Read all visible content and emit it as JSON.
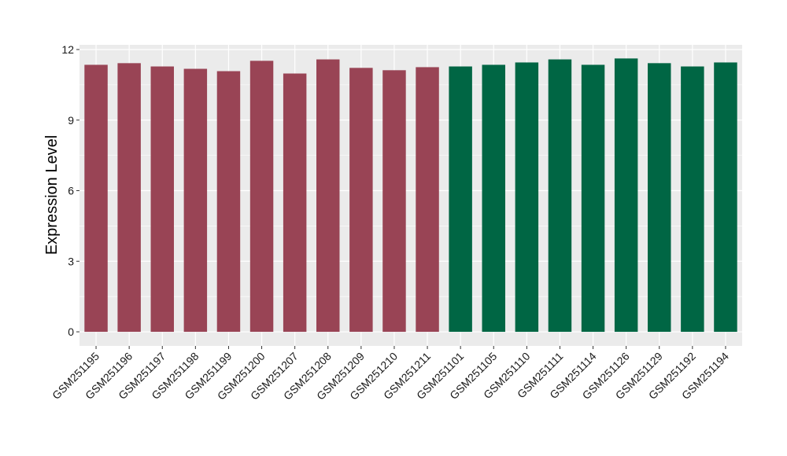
{
  "chart_data": {
    "type": "bar",
    "title": "",
    "xlabel": "",
    "ylabel": "Expression Level",
    "ylim": [
      -0.6,
      12.2
    ],
    "yticks": [
      0,
      3,
      6,
      9,
      12
    ],
    "grid": true,
    "legend": "none",
    "colors": {
      "group1": "#994455",
      "group2": "#006644",
      "panel": "#ebebeb",
      "grid": "#ffffff"
    },
    "categories": [
      "GSM251195",
      "GSM251196",
      "GSM251197",
      "GSM251198",
      "GSM251199",
      "GSM251200",
      "GSM251207",
      "GSM251208",
      "GSM251209",
      "GSM251210",
      "GSM251211",
      "GSM251101",
      "GSM251105",
      "GSM251110",
      "GSM251111",
      "GSM251114",
      "GSM251126",
      "GSM251129",
      "GSM251192",
      "GSM251194"
    ],
    "values": [
      11.35,
      11.42,
      11.28,
      11.18,
      11.08,
      11.52,
      10.98,
      11.58,
      11.22,
      11.12,
      11.25,
      11.28,
      11.35,
      11.45,
      11.58,
      11.35,
      11.62,
      11.42,
      11.28,
      11.45
    ],
    "groups": [
      1,
      1,
      1,
      1,
      1,
      1,
      1,
      1,
      1,
      1,
      1,
      2,
      2,
      2,
      2,
      2,
      2,
      2,
      2,
      2
    ]
  }
}
